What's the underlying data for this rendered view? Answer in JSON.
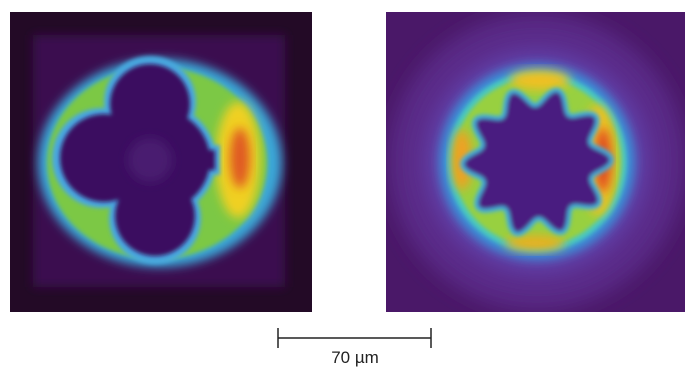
{
  "scale_bar": {
    "label": "70 µm"
  }
}
